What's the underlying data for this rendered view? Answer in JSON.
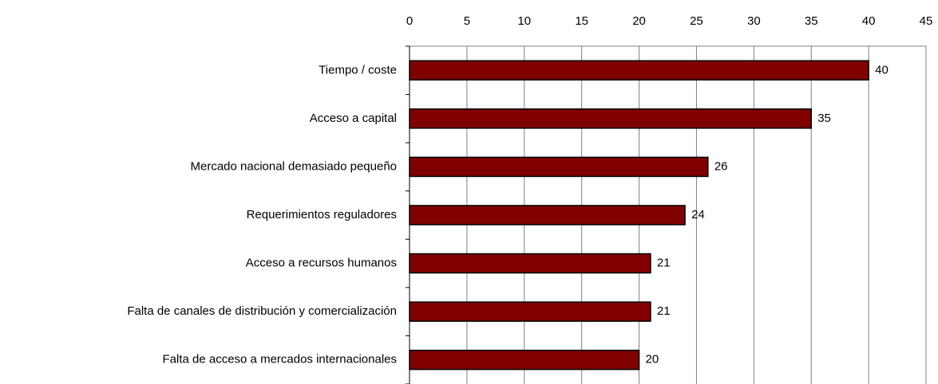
{
  "chart_data": {
    "type": "bar",
    "orientation": "horizontal",
    "categories": [
      "Tiempo / coste",
      "Acceso a capital",
      "Mercado nacional demasiado pequeño",
      "Requerimientos reguladores",
      "Acceso a recursos humanos",
      "Falta de canales de distribución y comercialización",
      "Falta de acceso a mercados internacionales"
    ],
    "values": [
      40,
      35,
      26,
      24,
      21,
      21,
      20
    ],
    "color": "#800000",
    "xlim": [
      0,
      45
    ],
    "xticks": [
      0,
      5,
      10,
      15,
      20,
      25,
      30,
      35,
      40,
      45
    ],
    "grid": true
  }
}
